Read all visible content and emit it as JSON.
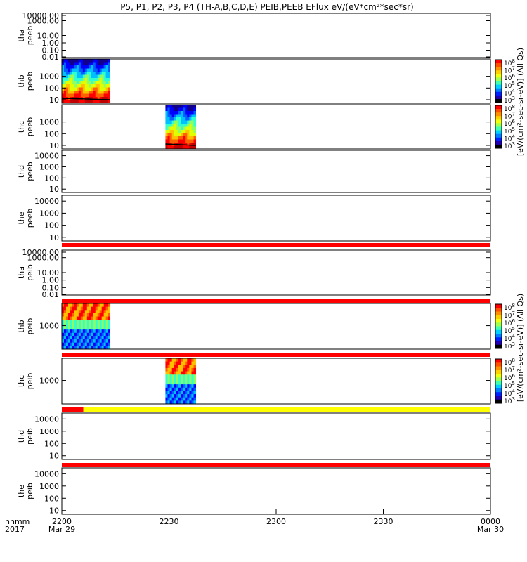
{
  "chart_data": {
    "type": "heatmap",
    "title": "P5, P1, P2, P3, P4 (TH-A,B,C,D,E) PEIB,PEEB EFlux eV/(eV*cm²*sec*sr)",
    "time_axis": {
      "row_labels": [
        "hhmm",
        "2017"
      ],
      "ticks": [
        {
          "label": "2200",
          "date": "Mar 29",
          "minutes": 0
        },
        {
          "label": "2230",
          "date": "",
          "minutes": 30
        },
        {
          "label": "2300",
          "date": "",
          "minutes": 60
        },
        {
          "label": "2330",
          "date": "",
          "minutes": 90
        },
        {
          "label": "0000",
          "date": "Mar 30",
          "minutes": 120
        }
      ],
      "range_minutes": [
        0,
        120
      ]
    },
    "colorbar_label": "[eV/(cm2-sec-sr-eV)] (All Qs)",
    "colorbar_labels": [
      "[eV/(cm²-sec-sr-eV)] (All Qs)",
      "[eV/(cm²-sec-sr-eV)] (All Qs)",
      "[eV/(cm²-sec-sr-eV)] (All Qs)"
    ],
    "colorbar_ticks": [
      {
        "base": "10",
        "exp": "8"
      },
      {
        "base": "10",
        "exp": "7"
      },
      {
        "base": "10",
        "exp": "6"
      },
      {
        "base": "10",
        "exp": "5"
      },
      {
        "base": "10",
        "exp": "4"
      },
      {
        "base": "10",
        "exp": "3"
      }
    ],
    "colorbar_range": [
      1000,
      100000000
    ],
    "flag_bar_colors": {
      "red": "#ff0000",
      "yellow": "#ffff00"
    },
    "panels": [
      {
        "probe": "tha",
        "instrument": "peeb",
        "ylim": [
          0.01,
          10000
        ],
        "ytick_labels": [
          "10000.00",
          "1000.00",
          "10.00",
          "1.00",
          "0.10",
          "0.01"
        ],
        "data": []
      },
      {
        "probe": "thb",
        "instrument": "peeb",
        "ylim": [
          5,
          30000
        ],
        "ytick_labels": [
          "1000",
          "100",
          "10"
        ],
        "data": [
          {
            "t_start": 0,
            "t_end": 13.5
          }
        ],
        "colorbar": true
      },
      {
        "probe": "thc",
        "instrument": "peeb",
        "ylim": [
          5,
          30000
        ],
        "ytick_labels": [
          "1000",
          "100",
          "10"
        ],
        "data": [
          {
            "t_start": 29,
            "t_end": 37.5
          }
        ],
        "colorbar": true
      },
      {
        "probe": "thd",
        "instrument": "peeb",
        "ylim": [
          5,
          30000
        ],
        "ytick_labels": [
          "10000",
          "1000",
          "100",
          "10"
        ],
        "data": []
      },
      {
        "probe": "the",
        "instrument": "peeb",
        "ylim": [
          5,
          30000
        ],
        "ytick_labels": [
          "10000",
          "1000",
          "100",
          "10"
        ],
        "data": [],
        "flag_bar": [
          {
            "t_start": 0,
            "t_end": 120,
            "color": "red"
          }
        ]
      },
      {
        "probe": "tha",
        "instrument": "peib",
        "ylim": [
          0.01,
          10000
        ],
        "ytick_labels": [
          "10000.00",
          "1000.00",
          "10.00",
          "1.00",
          "0.10",
          "0.01"
        ],
        "data": [],
        "flag_bar": [
          {
            "t_start": 0,
            "t_end": 120,
            "color": "red"
          }
        ]
      },
      {
        "probe": "thb",
        "instrument": "peib",
        "ylim": [
          150,
          6000
        ],
        "ytick_labels": [
          "1000"
        ],
        "data": [
          {
            "t_start": 0,
            "t_end": 13.5
          }
        ],
        "colorbar": true,
        "flag_bar": [
          {
            "t_start": 0,
            "t_end": 120,
            "color": "red"
          }
        ]
      },
      {
        "probe": "thc",
        "instrument": "peib",
        "ylim": [
          150,
          6000
        ],
        "ytick_labels": [
          "1000"
        ],
        "data": [
          {
            "t_start": 29,
            "t_end": 37.5
          }
        ],
        "colorbar": true,
        "flag_bar": [
          {
            "t_start": 0,
            "t_end": 6,
            "color": "red"
          },
          {
            "t_start": 6,
            "t_end": 120,
            "color": "yellow"
          }
        ]
      },
      {
        "probe": "thd",
        "instrument": "peib",
        "ylim": [
          5,
          30000
        ],
        "ytick_labels": [
          "10000",
          "1000",
          "100",
          "10"
        ],
        "data": [],
        "flag_bar": [
          {
            "t_start": 0,
            "t_end": 120,
            "color": "red"
          }
        ]
      },
      {
        "probe": "the",
        "instrument": "peib",
        "ylim": [
          5,
          30000
        ],
        "ytick_labels": [
          "10000",
          "1000",
          "100",
          "10"
        ],
        "data": []
      }
    ]
  }
}
